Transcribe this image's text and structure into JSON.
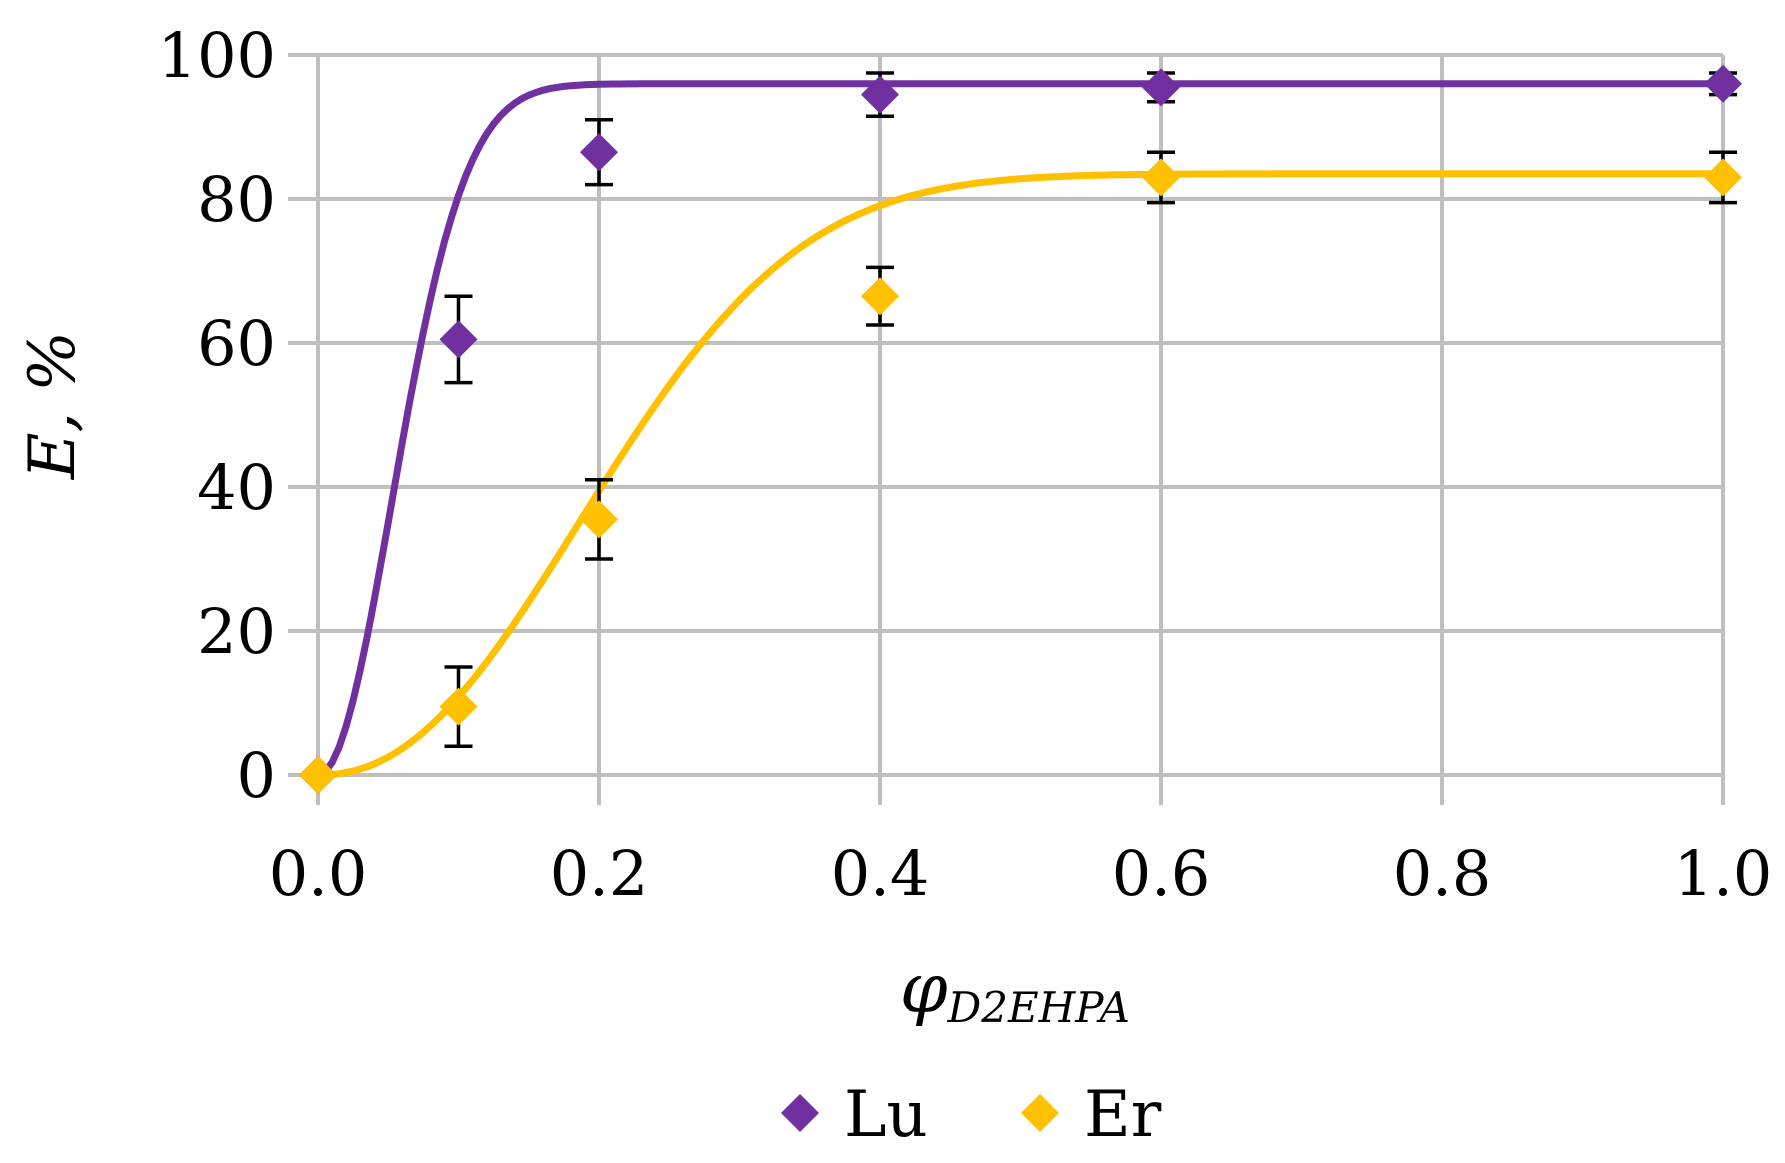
{
  "chart_data": {
    "type": "scatter",
    "title": "",
    "xlabel": {
      "symbol": "φ",
      "subscript": "D2EHPA"
    },
    "ylabel": "E, %",
    "xlim": [
      0.0,
      1.0
    ],
    "ylim": [
      0,
      100
    ],
    "x_ticks": [
      "0.0",
      "0.2",
      "0.4",
      "0.6",
      "0.8",
      "1.0"
    ],
    "y_ticks": [
      "0",
      "20",
      "40",
      "60",
      "80",
      "100"
    ],
    "grid": "vertical and horizontal lines at major ticks",
    "legend_position": "bottom",
    "series": [
      {
        "name": "Lu",
        "color": "#7030a0",
        "marker": "diamond",
        "x": [
          0.0,
          0.1,
          0.2,
          0.4,
          0.6,
          1.0
        ],
        "y": [
          0,
          60.5,
          86.5,
          94.5,
          95.5,
          96.0
        ],
        "error": [
          0,
          6,
          4.5,
          3,
          2,
          1.5
        ],
        "curve": {
          "ymax": 96,
          "k": 13.5,
          "p": 2.0
        }
      },
      {
        "name": "Er",
        "color": "#ffc000",
        "marker": "diamond",
        "x": [
          0.0,
          0.1,
          0.2,
          0.4,
          0.6,
          1.0
        ],
        "y": [
          0,
          9.5,
          35.5,
          66.5,
          83.0,
          83.0
        ],
        "error": [
          0,
          5.5,
          5.5,
          4,
          3.5,
          3.5
        ],
        "curve": {
          "ymax": 83.5,
          "k": 4.08,
          "p": 2.2
        }
      }
    ]
  }
}
